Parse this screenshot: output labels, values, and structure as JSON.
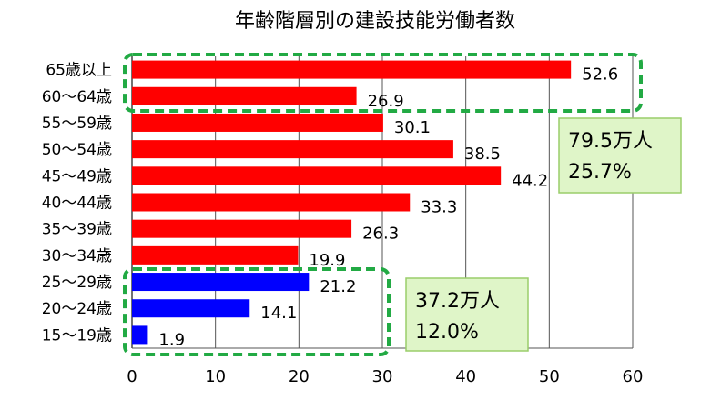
{
  "chart_data": {
    "type": "bar",
    "orientation": "horizontal",
    "title": "年齢階層別の建設技能労働者数",
    "xlim": [
      0,
      60
    ],
    "xticks": [
      0,
      10,
      20,
      30,
      40,
      50,
      60
    ],
    "grid": true,
    "categories": [
      "65歳以上",
      "60～64歳",
      "55～59歳",
      "50～54歳",
      "45～49歳",
      "40～44歳",
      "35～39歳",
      "30～34歳",
      "25～29歳",
      "20～24歳",
      "15～19歳"
    ],
    "values": [
      52.6,
      26.9,
      30.1,
      38.5,
      44.2,
      33.3,
      26.3,
      19.9,
      21.2,
      14.1,
      1.9
    ],
    "value_labels": [
      "52.6",
      "26.9",
      "30.1",
      "38.5",
      "44.2",
      "33.3",
      "26.3",
      "19.9",
      "21.2",
      "14.1",
      "1.9"
    ],
    "bar_colors": [
      "#ff0000",
      "#ff0000",
      "#ff0000",
      "#ff0000",
      "#ff0000",
      "#ff0000",
      "#ff0000",
      "#ff0000",
      "#0000ff",
      "#0000ff",
      "#0000ff"
    ],
    "annotations": [
      {
        "line1": "79.5万人",
        "line2": "25.7%",
        "group": "65歳以上・60～64歳"
      },
      {
        "line1": "37.2万人",
        "line2": "12.0%",
        "group": "25～29歳・20～24歳・15～19歳"
      }
    ],
    "colors": {
      "older": "#ff0000",
      "younger": "#0000ff",
      "group_outline": "#22aa44",
      "annotation_fill": "#dff5c8",
      "annotation_border": "#9acd6a"
    }
  }
}
